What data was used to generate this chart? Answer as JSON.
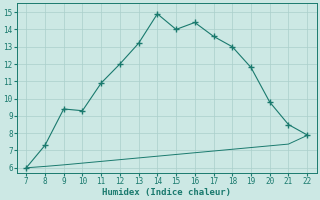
{
  "x": [
    7,
    8,
    9,
    10,
    11,
    12,
    13,
    14,
    15,
    16,
    17,
    18,
    19,
    20,
    21,
    22
  ],
  "y_main": [
    6.0,
    7.3,
    9.4,
    9.3,
    10.9,
    12.0,
    13.2,
    14.9,
    14.0,
    14.4,
    13.6,
    13.0,
    11.8,
    9.8,
    8.5,
    7.9
  ],
  "y_base": [
    6.0,
    6.08,
    6.17,
    6.27,
    6.37,
    6.47,
    6.57,
    6.67,
    6.77,
    6.87,
    6.97,
    7.07,
    7.17,
    7.27,
    7.37,
    7.87
  ],
  "line_color": "#1a7a6e",
  "bg_color": "#cce8e4",
  "grid_color": "#aacfcb",
  "xlabel": "Humidex (Indice chaleur)",
  "xlim": [
    6.5,
    22.5
  ],
  "ylim": [
    5.7,
    15.5
  ],
  "xticks": [
    7,
    8,
    9,
    10,
    11,
    12,
    13,
    14,
    15,
    16,
    17,
    18,
    19,
    20,
    21,
    22
  ],
  "yticks": [
    6,
    7,
    8,
    9,
    10,
    11,
    12,
    13,
    14,
    15
  ]
}
